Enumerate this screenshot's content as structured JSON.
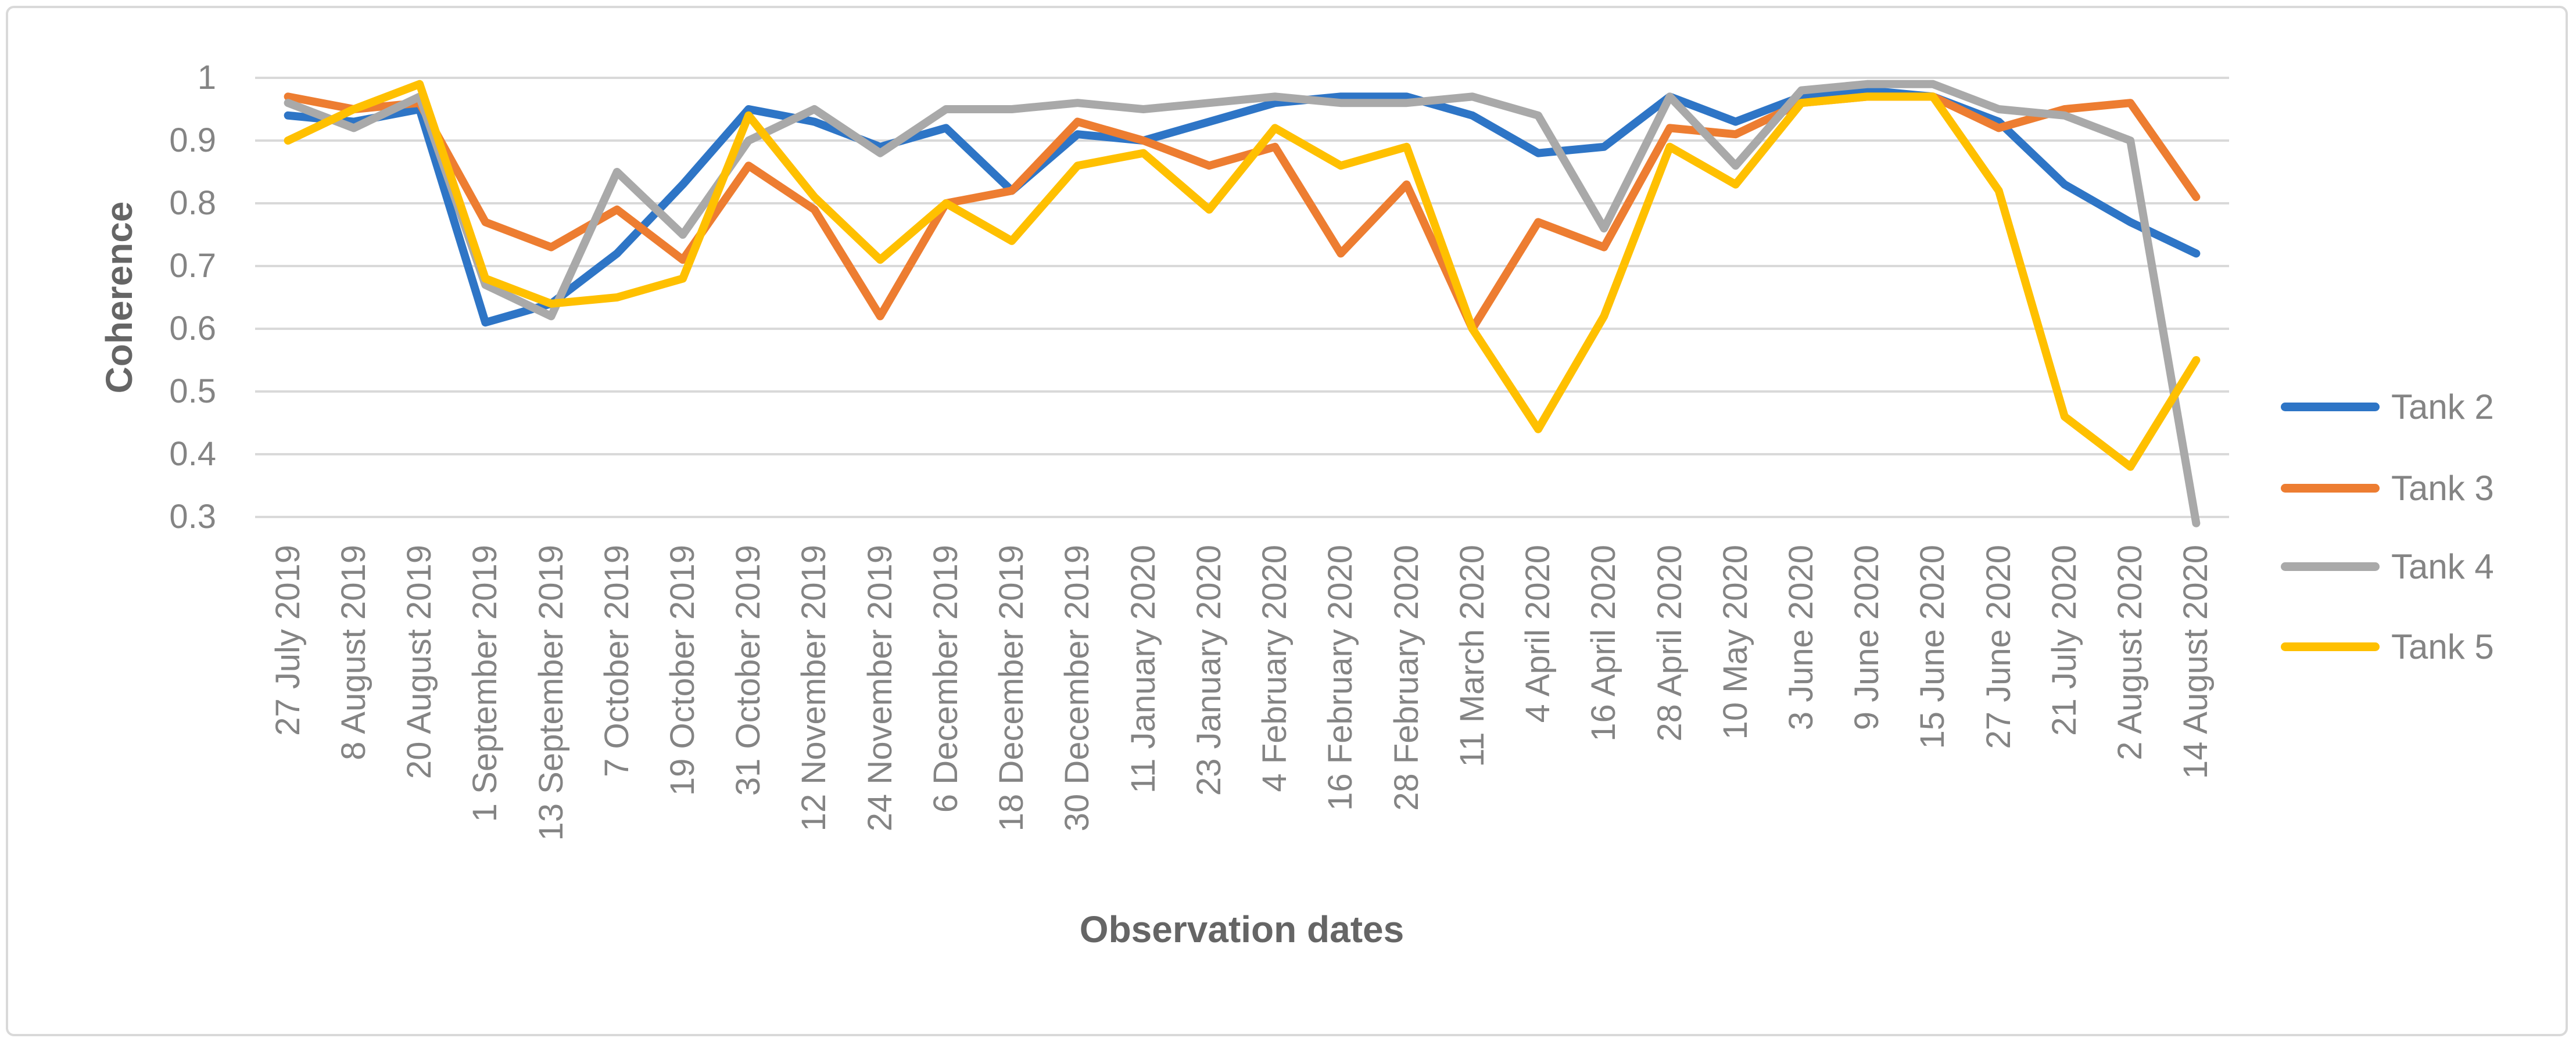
{
  "chart_data": {
    "type": "line",
    "title": "",
    "xlabel": "Observation dates",
    "ylabel": "Coherence",
    "ylim": [
      0.3,
      1.0
    ],
    "ytick_labels": [
      "1",
      "0.9",
      "0.8",
      "0.7",
      "0.6",
      "0.5",
      "0.4",
      "0.3"
    ],
    "ytick_values": [
      1.0,
      0.9,
      0.8,
      0.7,
      0.6,
      0.5,
      0.4,
      0.3
    ],
    "grid": "horizontal",
    "legend_position": "right",
    "categories": [
      "27 July 2019",
      "8 August 2019",
      "20 August 2019",
      "1 September 2019",
      "13 September 2019",
      "7 October 2019",
      "19 October 2019",
      "31 October 2019",
      "12 November 2019",
      "24 November 2019",
      "6 December 2019",
      "18 December 2019",
      "30 December 2019",
      "11 January 2020",
      "23 January 2020",
      "4 February 2020",
      "16 February 2020",
      "28 February 2020",
      "11 March 2020",
      "4 April 2020",
      "16 April 2020",
      "28 April 2020",
      "10 May 2020",
      "3 June 2020",
      "9 June 2020",
      "15 June 2020",
      "27 June 2020",
      "21 July 2020",
      "2 August 2020",
      "14 August 2020"
    ],
    "series": [
      {
        "name": "Tank 2",
        "color": "#2E75C6",
        "values": [
          0.94,
          0.93,
          0.95,
          0.61,
          0.64,
          0.72,
          0.83,
          0.95,
          0.93,
          0.89,
          0.92,
          0.82,
          0.91,
          0.9,
          0.93,
          0.96,
          0.97,
          0.97,
          0.94,
          0.88,
          0.89,
          0.97,
          0.93,
          0.97,
          0.98,
          0.97,
          0.93,
          0.83,
          0.77,
          0.72
        ]
      },
      {
        "name": "Tank 3",
        "color": "#ED7D31",
        "values": [
          0.97,
          0.95,
          0.96,
          0.77,
          0.73,
          0.79,
          0.71,
          0.86,
          0.79,
          0.62,
          0.8,
          0.82,
          0.93,
          0.9,
          0.86,
          0.89,
          0.72,
          0.83,
          0.6,
          0.77,
          0.73,
          0.92,
          0.91,
          0.96,
          0.97,
          0.97,
          0.92,
          0.95,
          0.96,
          0.81
        ]
      },
      {
        "name": "Tank 4",
        "color": "#A9A9A9",
        "values": [
          0.96,
          0.92,
          0.97,
          0.67,
          0.62,
          0.85,
          0.75,
          0.9,
          0.95,
          0.88,
          0.95,
          0.95,
          0.96,
          0.95,
          0.96,
          0.97,
          0.96,
          0.96,
          0.97,
          0.94,
          0.76,
          0.97,
          0.86,
          0.98,
          0.99,
          0.99,
          0.95,
          0.94,
          0.9,
          0.29
        ]
      },
      {
        "name": "Tank 5",
        "color": "#FFC000",
        "values": [
          0.9,
          0.95,
          0.99,
          0.68,
          0.64,
          0.65,
          0.68,
          0.94,
          0.81,
          0.71,
          0.8,
          0.74,
          0.86,
          0.88,
          0.79,
          0.92,
          0.86,
          0.89,
          0.6,
          0.44,
          0.62,
          0.89,
          0.83,
          0.96,
          0.97,
          0.97,
          0.82,
          0.46,
          0.38,
          0.55
        ]
      }
    ]
  },
  "legend": {
    "items": [
      {
        "label": "Tank 2",
        "color": "#2E75C6"
      },
      {
        "label": "Tank 3",
        "color": "#ED7D31"
      },
      {
        "label": "Tank 4",
        "color": "#A9A9A9"
      },
      {
        "label": "Tank 5",
        "color": "#FFC000"
      }
    ]
  },
  "colors": {
    "gridline": "#d9d9d9",
    "chart_border": "#d9d9d9",
    "tick_text": "#848484",
    "axis_title_text": "#656565",
    "background": "#ffffff"
  }
}
